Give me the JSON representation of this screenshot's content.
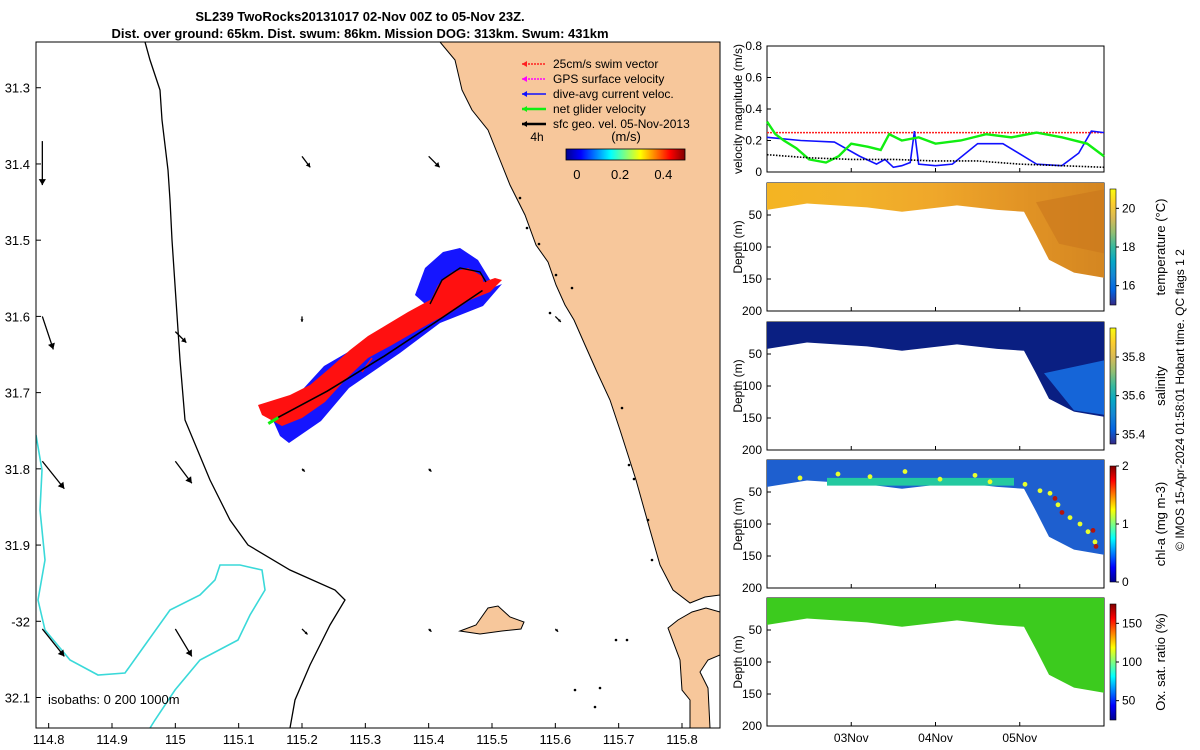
{
  "title": {
    "line1": "SL239 TwoRocks20131017 02-Nov 00Z to 05-Nov 23Z.",
    "line2": "Dist. over ground: 65km. Dist. swum: 86km. Mission DOG: 313km. Swum: 431km"
  },
  "colors": {
    "land": "#f7c79b",
    "coastline": "#000000",
    "isobath_shallow": "#000000",
    "isobath_deep": "#3ad9d9",
    "swim_vector": "#ff2020",
    "gps_velocity": "#ff00ff",
    "dive_avg_current": "#1010ff",
    "net_glider_velocity": "#11ee11",
    "geostrophic": "#000000",
    "track_red": "#ff1010",
    "track_blue": "#1515ff"
  },
  "chart_data": [
    {
      "name": "map",
      "type": "scatter",
      "xlabel": "",
      "ylabel": "",
      "xlim": [
        114.78,
        115.86
      ],
      "ylim": [
        -32.14,
        -31.24
      ],
      "x_ticks": [
        114.8,
        114.9,
        115,
        115.1,
        115.2,
        115.3,
        115.4,
        115.5,
        115.6,
        115.7,
        115.8
      ],
      "x_tick_labels": [
        "114.8",
        "114.9",
        "115",
        "115.1",
        "115.2",
        "115.3",
        "115.4",
        "115.5",
        "115.6",
        "115.7",
        "115.8"
      ],
      "y_ticks": [
        -31.3,
        -31.4,
        -31.5,
        -31.6,
        -31.7,
        -31.8,
        -31.9,
        -32,
        -32.1
      ],
      "y_tick_labels": [
        "31.3",
        "31.4",
        "31.5",
        "31.6",
        "31.7",
        "31.8",
        "31.9",
        "-32",
        "32.1"
      ],
      "legend": [
        {
          "label": "25cm/s swim vector",
          "color": "#ff2020"
        },
        {
          "label": "GPS surface velocity",
          "color": "#ff00ff"
        },
        {
          "label": "dive-avg current veloc.",
          "color": "#1010ff"
        },
        {
          "label": "net glider velocity",
          "color": "#11ee11"
        },
        {
          "label": "sfc geo. vel. 05-Nov-2013",
          "color": "#000000"
        }
      ],
      "legend_extra": "4h",
      "colorbar": {
        "label": "(m/s)",
        "ticks": [
          "0",
          "0.2",
          "0.4"
        ],
        "range": [
          -0.05,
          0.5
        ]
      },
      "isobath_label": "isobaths: 0   200  1000m",
      "glider_track": [
        {
          "lon": 115.15,
          "lat": -31.738
        },
        {
          "lon": 115.24,
          "lat": -31.698
        },
        {
          "lon": 115.33,
          "lat": -31.652
        },
        {
          "lon": 115.41,
          "lat": -31.608
        },
        {
          "lon": 115.485,
          "lat": -31.566
        }
      ],
      "geostrophic_vectors": [
        {
          "lon": 114.79,
          "lat": -31.37,
          "u": 0.0,
          "v": -0.08
        },
        {
          "lon": 114.79,
          "lat": -31.6,
          "u": 0.02,
          "v": -0.06
        },
        {
          "lon": 114.79,
          "lat": -31.79,
          "u": 0.04,
          "v": -0.05
        },
        {
          "lon": 114.79,
          "lat": -32.01,
          "u": 0.04,
          "v": -0.05
        },
        {
          "lon": 115.0,
          "lat": -31.62,
          "u": 0.02,
          "v": -0.02
        },
        {
          "lon": 115.0,
          "lat": -31.79,
          "u": 0.03,
          "v": -0.04
        },
        {
          "lon": 115.0,
          "lat": -32.01,
          "u": 0.03,
          "v": -0.05
        },
        {
          "lon": 115.2,
          "lat": -31.39,
          "u": 0.015,
          "v": -0.02
        },
        {
          "lon": 115.2,
          "lat": -31.6,
          "u": 0.0,
          "v": -0.01
        },
        {
          "lon": 115.2,
          "lat": -31.8,
          "u": 0.005,
          "v": -0.005
        },
        {
          "lon": 115.2,
          "lat": -32.01,
          "u": 0.01,
          "v": -0.01
        },
        {
          "lon": 115.4,
          "lat": -31.39,
          "u": 0.02,
          "v": -0.02
        },
        {
          "lon": 115.4,
          "lat": -31.8,
          "u": 0.005,
          "v": -0.005
        },
        {
          "lon": 115.4,
          "lat": -32.01,
          "u": 0.005,
          "v": -0.005
        },
        {
          "lon": 115.6,
          "lat": -31.6,
          "u": 0.01,
          "v": -0.01
        },
        {
          "lon": 115.6,
          "lat": -32.01,
          "u": 0.005,
          "v": -0.005
        }
      ]
    },
    {
      "name": "velocity",
      "type": "line",
      "ylabel": "velocity magnitude (m/s)",
      "ylim": [
        0,
        0.8
      ],
      "y_ticks": [
        0,
        0.2,
        0.4,
        0.6,
        0.8
      ],
      "y_tick_labels": [
        "0",
        "0.2",
        "0.4",
        "0.6",
        "0.8"
      ],
      "xlim": [
        2.0,
        6.0
      ],
      "series": [
        {
          "name": "swim vector",
          "color": "#ff2020",
          "x": [
            2.0,
            6.0
          ],
          "values": [
            0.25,
            0.25
          ]
        },
        {
          "name": "dive-avg current",
          "color": "#1010ff",
          "x": [
            2.0,
            2.4,
            2.8,
            3.1,
            3.3,
            3.4,
            3.5,
            3.6,
            3.7,
            3.75,
            3.8,
            4.0,
            4.2,
            4.5,
            4.8,
            5.2,
            5.5,
            5.7,
            5.85,
            6.0
          ],
          "values": [
            0.22,
            0.2,
            0.19,
            0.1,
            0.05,
            0.08,
            0.03,
            0.04,
            0.06,
            0.26,
            0.05,
            0.04,
            0.05,
            0.18,
            0.18,
            0.05,
            0.04,
            0.12,
            0.26,
            0.25
          ]
        },
        {
          "name": "net glider velocity",
          "color": "#11ee11",
          "x": [
            2.0,
            2.1,
            2.2,
            2.35,
            2.5,
            2.7,
            2.85,
            3.0,
            3.2,
            3.35,
            3.45,
            3.6,
            3.8,
            4.0,
            4.3,
            4.6,
            4.9,
            5.2,
            5.5,
            5.8,
            6.0
          ],
          "values": [
            0.32,
            0.24,
            0.2,
            0.15,
            0.08,
            0.06,
            0.1,
            0.18,
            0.16,
            0.14,
            0.24,
            0.2,
            0.22,
            0.18,
            0.2,
            0.24,
            0.22,
            0.25,
            0.22,
            0.18,
            0.1
          ]
        },
        {
          "name": "geostrophic",
          "color": "#000000",
          "x": [
            2.0,
            2.5,
            3.0,
            3.5,
            4.0,
            4.5,
            5.0,
            5.5,
            6.0
          ],
          "values": [
            0.11,
            0.09,
            0.08,
            0.08,
            0.07,
            0.07,
            0.05,
            0.04,
            0.03
          ]
        }
      ]
    },
    {
      "name": "temperature",
      "type": "heatmap",
      "ylabel": "Depth (m)",
      "ylim": [
        200,
        0
      ],
      "y_ticks": [
        50,
        100,
        150,
        200
      ],
      "colorbar_label": "temperature (°C)",
      "colorbar_ticks": [
        "16",
        "18",
        "20"
      ],
      "colorbar_range": [
        15,
        21
      ],
      "values": {
        "surface": 19.8,
        "deep_east": 17.6
      }
    },
    {
      "name": "salinity",
      "type": "heatmap",
      "ylabel": "Depth (m)",
      "ylim": [
        200,
        0
      ],
      "y_ticks": [
        50,
        100,
        150,
        200
      ],
      "colorbar_label": "salinity",
      "colorbar_ticks": [
        "35.4",
        "35.6",
        "35.8"
      ],
      "colorbar_range": [
        35.35,
        35.95
      ],
      "values": {
        "surface": 35.4,
        "deep_east": 35.55
      }
    },
    {
      "name": "chlorophyll",
      "type": "heatmap",
      "ylabel": "Depth (m)",
      "ylim": [
        200,
        0
      ],
      "y_ticks": [
        50,
        100,
        150,
        200
      ],
      "colorbar_label": "chl-a (mg m-3)",
      "colorbar_ticks": [
        "0",
        "1",
        "2"
      ],
      "colorbar_range": [
        0,
        2
      ],
      "values": {
        "surface": 0.3,
        "mid": 0.9
      }
    },
    {
      "name": "oxygen",
      "type": "heatmap",
      "ylabel": "Depth (m)",
      "ylim": [
        200,
        0
      ],
      "y_ticks": [
        50,
        100,
        150,
        200
      ],
      "colorbar_label": "Ox. sat. ratio (%)",
      "colorbar_ticks": [
        "50",
        "100",
        "150"
      ],
      "colorbar_range": [
        25,
        175
      ],
      "values": {
        "surface": 100,
        "deep_east": 95
      },
      "x_ticks": [
        3,
        4,
        5
      ],
      "x_tick_labels": [
        "03Nov",
        "04Nov",
        "05Nov"
      ]
    }
  ],
  "footer": {
    "depth_tick": "200",
    "credit": "© IMOS 15-Apr-2024 01:58:01 Hobart time. QC flags 1  2"
  }
}
